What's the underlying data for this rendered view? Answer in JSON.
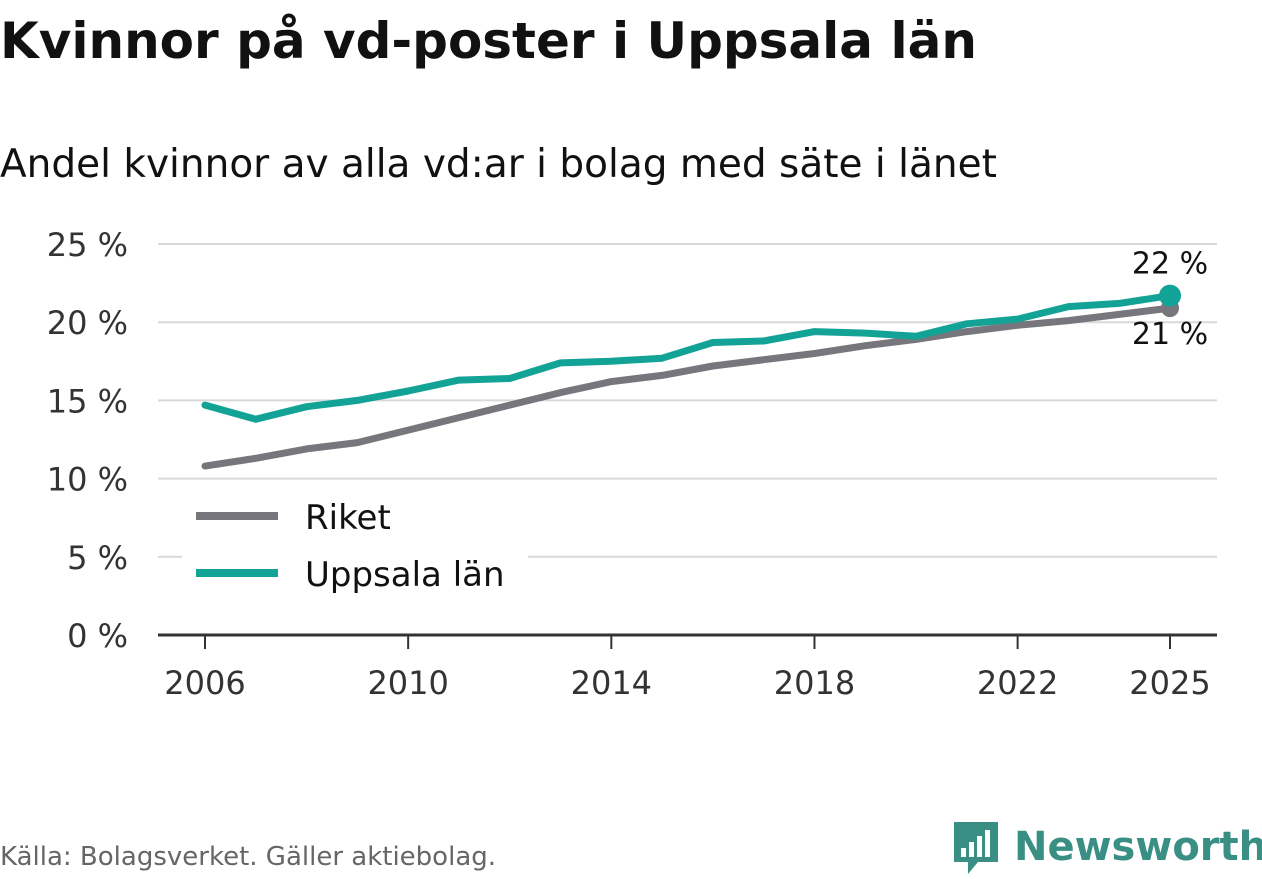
{
  "title": "Kvinnor på vd-poster i Uppsala län",
  "subtitle": "Andel kvinnor av alla vd:ar i bolag med säte i länet",
  "source": "Källa: Bolagsverket. Gäller aktiebolag.",
  "brand": "Newsworthy",
  "colors": {
    "riket": "#77767c",
    "uppsala": "#13a396",
    "grid": "#d9d9d9",
    "axis": "#333333",
    "brand": "#3a8f85"
  },
  "chart_data": {
    "type": "line",
    "title": "Kvinnor på vd-poster i Uppsala län",
    "subtitle": "Andel kvinnor av alla vd:ar i bolag med säte i länet",
    "x": [
      2006,
      2007,
      2008,
      2009,
      2010,
      2011,
      2012,
      2013,
      2014,
      2015,
      2016,
      2017,
      2018,
      2019,
      2020,
      2021,
      2022,
      2023,
      2024,
      2025
    ],
    "xticks": [
      "2006",
      "2010",
      "2014",
      "2018",
      "2022",
      "2025"
    ],
    "ylim": [
      0,
      25
    ],
    "yticks": [
      "0 %",
      "5 %",
      "10 %",
      "15 %",
      "20 %",
      "25 %"
    ],
    "series": [
      {
        "name": "Riket",
        "color": "#77767c",
        "values": [
          10.8,
          11.3,
          11.9,
          12.3,
          13.1,
          13.9,
          14.7,
          15.5,
          16.2,
          16.6,
          17.2,
          17.6,
          18.0,
          18.5,
          18.9,
          19.4,
          19.8,
          20.1,
          20.5,
          20.9
        ],
        "end_label": "21 %"
      },
      {
        "name": "Uppsala län",
        "color": "#13a396",
        "values": [
          14.7,
          13.8,
          14.6,
          15.0,
          15.6,
          16.3,
          16.4,
          17.4,
          17.5,
          17.7,
          18.7,
          18.8,
          19.4,
          19.3,
          19.1,
          19.9,
          20.2,
          21.0,
          21.2,
          21.7
        ],
        "end_label": "22 %"
      }
    ],
    "legend": [
      "Riket",
      "Uppsala län"
    ],
    "legend_position": "left-middle",
    "grid": true
  }
}
